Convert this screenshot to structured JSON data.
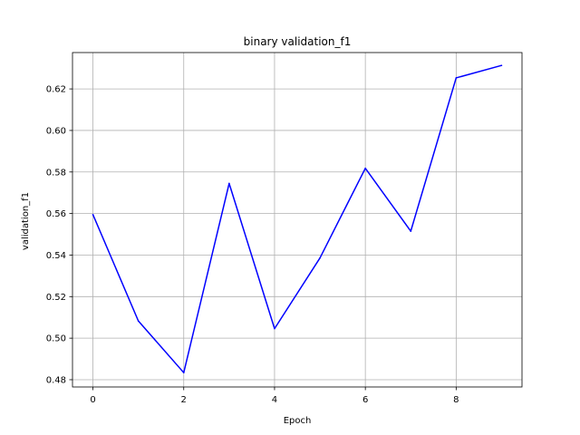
{
  "chart_data": {
    "type": "line",
    "title": "binary validation_f1",
    "xlabel": "Epoch",
    "ylabel": "validation_f1",
    "xlim": [
      -0.45,
      9.45
    ],
    "ylim": [
      0.4765,
      0.6375
    ],
    "xticks": [
      0,
      2,
      4,
      6,
      8
    ],
    "xtick_labels": [
      "0",
      "2",
      "4",
      "6",
      "8"
    ],
    "yticks": [
      0.48,
      0.5,
      0.52,
      0.54,
      0.56,
      0.58,
      0.6,
      0.62
    ],
    "ytick_labels": [
      "0.48",
      "0.50",
      "0.52",
      "0.54",
      "0.56",
      "0.58",
      "0.60",
      "0.62"
    ],
    "grid": true,
    "series": [
      {
        "color": "#0000ff",
        "x": [
          0,
          1,
          2,
          3,
          4,
          5,
          6,
          7,
          8,
          9
        ],
        "values": [
          0.5595,
          0.5083,
          0.4834,
          0.5745,
          0.5046,
          0.5386,
          0.5818,
          0.5515,
          0.6253,
          0.6313
        ]
      }
    ]
  }
}
